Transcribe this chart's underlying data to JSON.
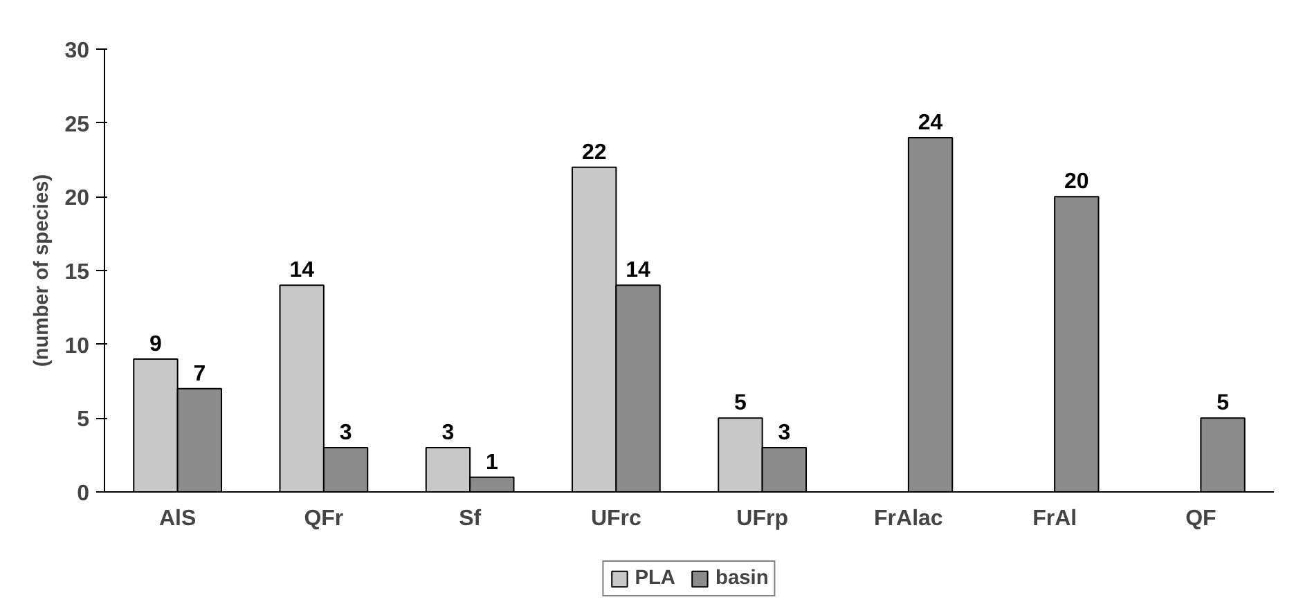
{
  "chart_data": {
    "type": "bar",
    "ylabel": "(number of species)",
    "categories": [
      "AlS",
      "QFr",
      "Sf",
      "UFrc",
      "UFrp",
      "FrAlac",
      "FrAl",
      "QF"
    ],
    "series": [
      {
        "name": "PLA",
        "color": "#c8c8c8",
        "values": [
          9,
          14,
          3,
          22,
          5,
          null,
          null,
          null
        ]
      },
      {
        "name": "basin",
        "color": "#8c8c8c",
        "values": [
          7,
          3,
          1,
          14,
          3,
          24,
          20,
          5
        ]
      }
    ],
    "ylim": [
      0,
      30
    ],
    "yticks": [
      0,
      5,
      10,
      15,
      20,
      25,
      30
    ],
    "grid": false,
    "legend": "bottom",
    "data_labels": true
  }
}
